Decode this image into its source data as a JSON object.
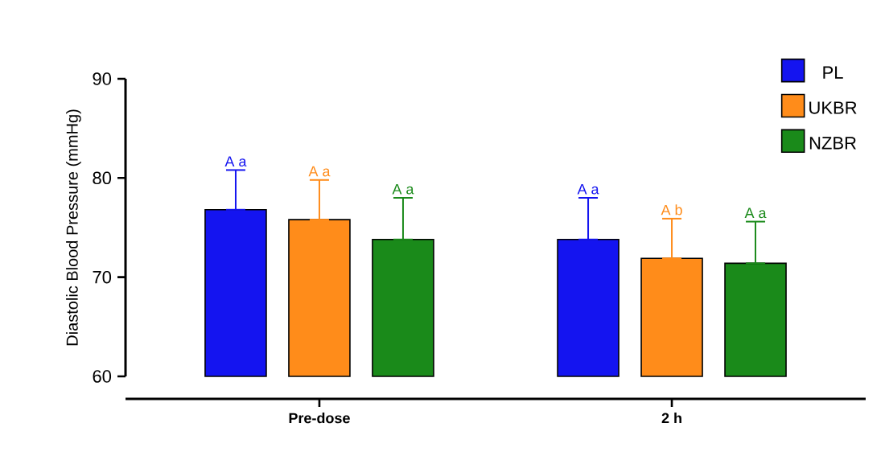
{
  "chart_data": {
    "type": "bar",
    "ylabel": "Diastolic Blood Pressure (mmHg)",
    "categories": [
      "Pre-dose",
      "2 h"
    ],
    "ylim": [
      60,
      90
    ],
    "yticks": [
      60,
      70,
      80,
      90
    ],
    "legend": "top right",
    "grid": false,
    "series": [
      {
        "name": "PL",
        "color": "#1414f0",
        "values": [
          76.8,
          73.8
        ],
        "errors": [
          [
            76.8,
            80.8
          ],
          [
            73.8,
            78.0
          ]
        ],
        "value_labels": [
          "A a",
          "A a"
        ]
      },
      {
        "name": "UKBR",
        "color": "#ff8c1a",
        "values": [
          75.8,
          71.9
        ],
        "errors": [
          [
            75.8,
            79.8
          ],
          [
            71.9,
            75.9
          ]
        ],
        "value_labels": [
          "A a",
          "A b"
        ]
      },
      {
        "name": "NZBR",
        "color": "#1a8a1a",
        "values": [
          73.8,
          71.4
        ],
        "errors": [
          [
            73.8,
            78.0
          ],
          [
            71.4,
            75.6
          ]
        ],
        "value_labels": [
          "A a",
          "A a"
        ]
      }
    ]
  }
}
